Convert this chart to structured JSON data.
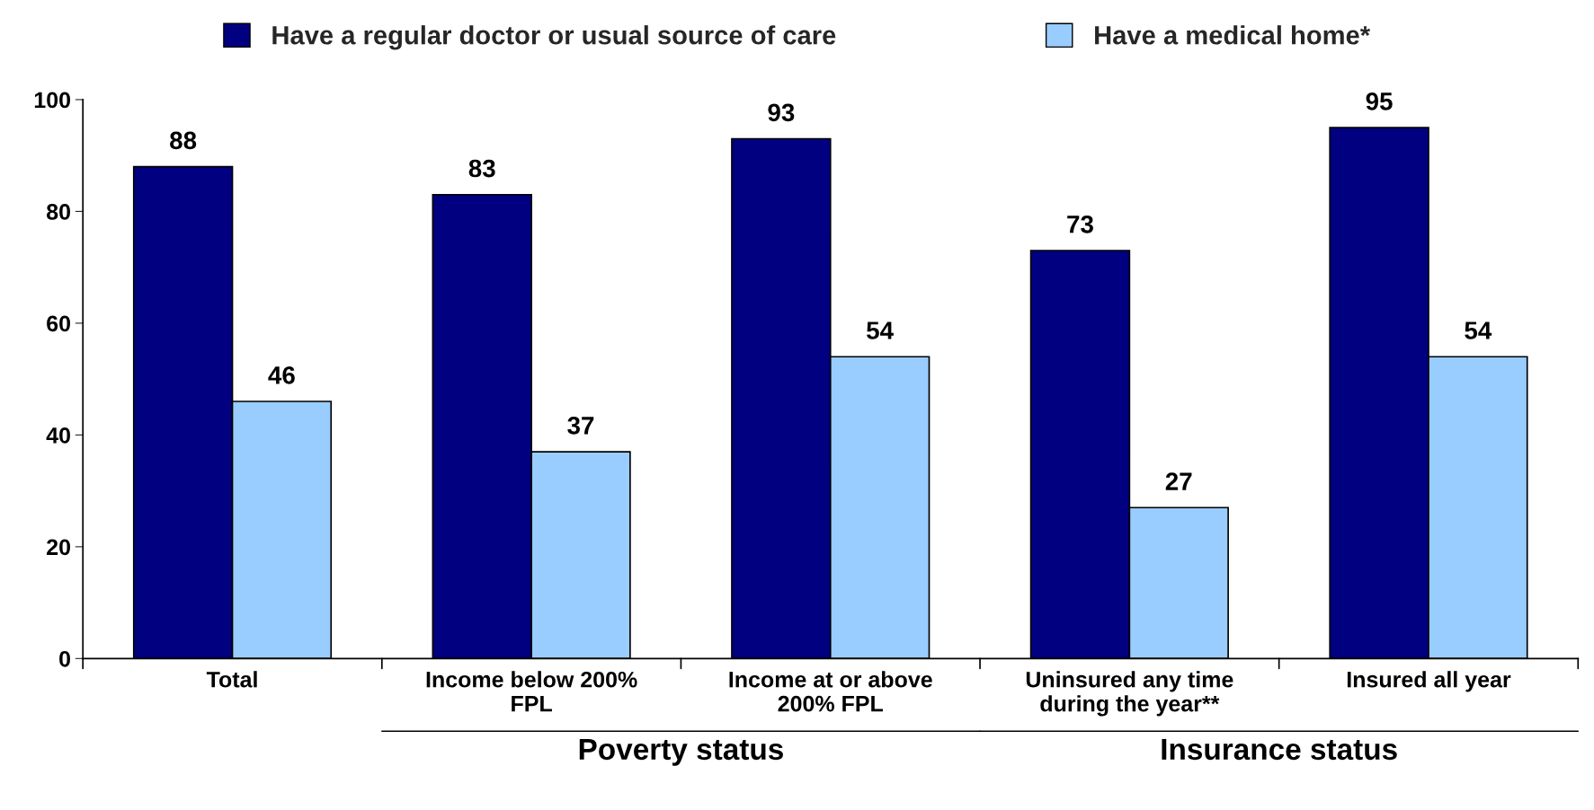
{
  "chart_data": {
    "type": "bar",
    "categories": [
      "Total",
      "Income below 200%\nFPL",
      "Income at or above\n200% FPL",
      "Uninsured any time\nduring the year**",
      "Insured all year"
    ],
    "series": [
      {
        "name": "Have a regular doctor or usual source of care",
        "color": "#000080",
        "values": [
          88,
          83,
          93,
          73,
          95
        ]
      },
      {
        "name": "Have a medical home*",
        "color": "#99ccff",
        "values": [
          46,
          37,
          54,
          27,
          54
        ]
      }
    ],
    "ylim": [
      0,
      100
    ],
    "yticks": [
      0,
      20,
      40,
      60,
      80,
      100
    ],
    "data_labels": true,
    "legend": "top",
    "grid": false,
    "annotations": [
      "Poverty status",
      "Insurance status"
    ]
  }
}
